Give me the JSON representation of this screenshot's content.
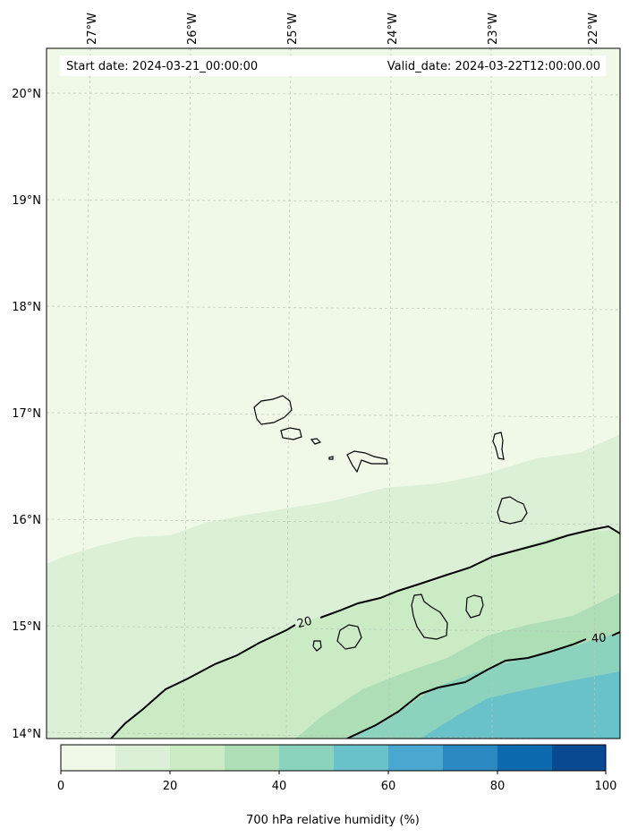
{
  "header": {
    "start_date": "Start date: 2024-03-21_00:00:00",
    "valid_date": "Valid_date: 2024-03-22T12:00:00.00"
  },
  "map": {
    "longitude_labels": [
      "27°W",
      "26°W",
      "25°W",
      "24°W",
      "23°W",
      "22°W"
    ],
    "latitude_labels": [
      "20°N",
      "19°N",
      "18°N",
      "17°N",
      "16°N",
      "15°N",
      "14°N"
    ],
    "contour_labels": [
      "20",
      "40"
    ],
    "colors": {
      "band_0_10": "#f0f9e8",
      "band_10_20": "#dcf0d8",
      "band_20_30": "#cbebc5",
      "band_30_40": "#addeb6",
      "band_40_50": "#8bd3be",
      "band_50_60": "#69c1c9",
      "band_60_70": "#4aa7d0",
      "band_70_80": "#2c88c0",
      "band_80_90": "#0e6aaf",
      "band_90_100": "#084a91"
    }
  },
  "colorbar": {
    "ticks": [
      "0",
      "20",
      "40",
      "60",
      "80",
      "100"
    ],
    "label": "700 hPa relative humidity (%)"
  }
}
